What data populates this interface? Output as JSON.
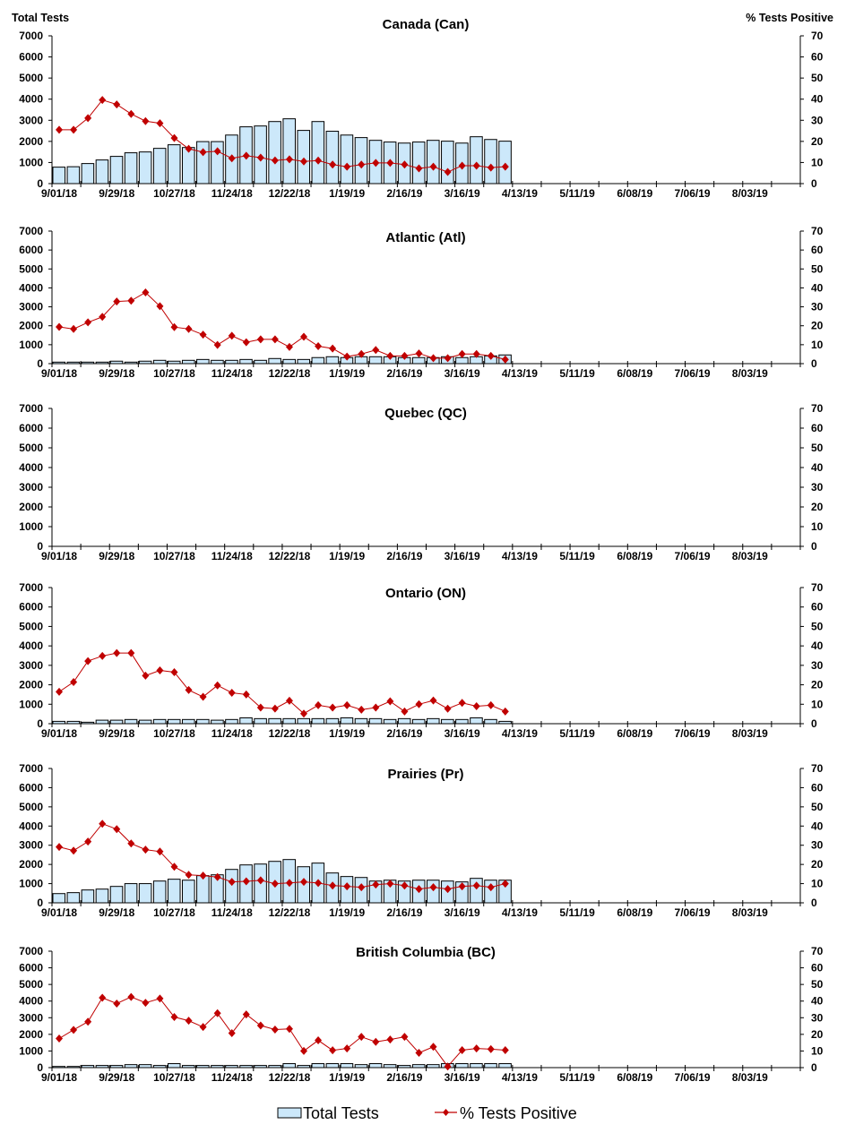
{
  "y_axis_left_label": "Total Tests",
  "y_axis_right_label": "% Tests Positive",
  "legend": {
    "bars": "Total Tests",
    "line": "% Tests Positive"
  },
  "colors": {
    "bar_fill": "#CCE8FA",
    "bar_stroke": "#000000",
    "line": "#C00000"
  },
  "chart_data": [
    {
      "type": "bar+line",
      "title": "Canada (Can)",
      "x_tick_labels": [
        "9/01/18",
        "9/29/18",
        "10/27/18",
        "11/24/18",
        "12/22/18",
        "1/19/19",
        "2/16/19",
        "3/16/19",
        "4/13/19",
        "5/11/19",
        "6/08/19",
        "7/06/19",
        "8/03/19"
      ],
      "weeks_on_axis": 52,
      "ylim": [
        0,
        7000
      ],
      "y2lim": [
        0,
        70
      ],
      "y_ticks": [
        0,
        1000,
        2000,
        3000,
        4000,
        5000,
        6000,
        7000
      ],
      "y2_ticks": [
        0,
        10,
        20,
        30,
        40,
        50,
        60,
        70
      ],
      "series": [
        {
          "name": "Total Tests",
          "axis": "left",
          "values": [
            780,
            800,
            950,
            1120,
            1290,
            1460,
            1500,
            1670,
            1840,
            1710,
            1990,
            1990,
            2300,
            2690,
            2730,
            2940,
            3070,
            2520,
            2940,
            2480,
            2300,
            2180,
            2050,
            1970,
            1920,
            1970,
            2050,
            2010,
            1920,
            2220,
            2090,
            2010
          ]
        },
        {
          "name": "% Tests Positive",
          "axis": "right",
          "values": [
            25.5,
            25.5,
            31,
            39.6,
            37.5,
            33,
            29.6,
            28.6,
            21.6,
            16.5,
            14.9,
            15.3,
            12,
            13.2,
            12.3,
            11,
            11.5,
            10.5,
            10.9,
            9,
            8,
            9,
            9.8,
            9.8,
            9,
            7.2,
            8,
            5.5,
            8.5,
            8.5,
            7.6,
            8
          ]
        }
      ]
    },
    {
      "type": "bar+line",
      "title": "Atlantic (Atl)",
      "ylim": [
        0,
        7000
      ],
      "y2lim": [
        0,
        70
      ],
      "series": [
        {
          "name": "Total Tests",
          "axis": "left",
          "values": [
            80,
            80,
            80,
            80,
            130,
            80,
            130,
            175,
            130,
            175,
            220,
            175,
            175,
            220,
            175,
            270,
            220,
            220,
            320,
            365,
            320,
            365,
            365,
            365,
            320,
            320,
            320,
            365,
            320,
            365,
            410,
            460
          ]
        },
        {
          "name": "% Tests Positive",
          "axis": "right",
          "values": [
            19.4,
            18.3,
            21.8,
            24.7,
            32.8,
            33.2,
            37.6,
            30.3,
            19.3,
            18.3,
            15.3,
            9.9,
            14.7,
            11.3,
            12.8,
            12.8,
            8.8,
            14.2,
            9.2,
            8,
            3.7,
            5.1,
            7.2,
            4.1,
            4.1,
            5.4,
            2.9,
            2.9,
            5.1,
            5.1,
            4.1,
            2.2
          ]
        }
      ]
    },
    {
      "type": "bar+line",
      "title": "Quebec (QC)",
      "ylim": [
        0,
        7000
      ],
      "y2lim": [
        0,
        70
      ],
      "series": [
        {
          "name": "Total Tests",
          "axis": "left",
          "values": []
        },
        {
          "name": "% Tests Positive",
          "axis": "right",
          "values": []
        }
      ]
    },
    {
      "type": "bar+line",
      "title": "Ontario (ON)",
      "ylim": [
        0,
        7000
      ],
      "y2lim": [
        0,
        70
      ],
      "series": [
        {
          "name": "Total Tests",
          "axis": "left",
          "values": [
            120,
            120,
            75,
            180,
            180,
            215,
            180,
            215,
            215,
            215,
            215,
            180,
            215,
            300,
            260,
            260,
            260,
            260,
            260,
            260,
            300,
            260,
            260,
            215,
            260,
            215,
            260,
            215,
            215,
            300,
            215,
            120
          ]
        },
        {
          "name": "% Tests Positive",
          "axis": "right",
          "values": [
            16.4,
            21.4,
            32.2,
            34.8,
            36.3,
            36.3,
            24.7,
            27.4,
            26.5,
            17.3,
            13.8,
            19.7,
            15.9,
            15,
            8.3,
            7.8,
            11.8,
            5.2,
            9.5,
            8.3,
            9.5,
            7.2,
            8.3,
            11.5,
            6.3,
            10,
            11.9,
            7.7,
            10.7,
            9,
            9.5,
            6.3
          ]
        }
      ]
    },
    {
      "type": "bar+line",
      "title": "Prairies (Pr)",
      "ylim": [
        0,
        7000
      ],
      "y2lim": [
        0,
        70
      ],
      "series": [
        {
          "name": "Total Tests",
          "axis": "left",
          "values": [
            480,
            530,
            670,
            715,
            855,
            1000,
            1000,
            1135,
            1230,
            1180,
            1415,
            1460,
            1740,
            1975,
            2020,
            2160,
            2255,
            1880,
            2070,
            1555,
            1370,
            1320,
            1135,
            1180,
            1135,
            1180,
            1180,
            1135,
            1090,
            1275,
            1180,
            1180
          ]
        },
        {
          "name": "% Tests Positive",
          "axis": "right",
          "values": [
            29.1,
            27.2,
            31.9,
            41.2,
            38.4,
            30.9,
            27.7,
            26.7,
            18.8,
            14.6,
            14.2,
            13.4,
            10.9,
            11.2,
            11.7,
            10,
            10.4,
            10.9,
            10.3,
            9,
            8.6,
            8.1,
            9.5,
            10,
            9,
            7.2,
            8.1,
            7.2,
            8.6,
            9,
            8.1,
            10
          ]
        }
      ]
    },
    {
      "type": "bar+line",
      "title": "British Columbia (BC)",
      "ylim": [
        0,
        7000
      ],
      "y2lim": [
        0,
        70
      ],
      "series": [
        {
          "name": "Total Tests",
          "axis": "left",
          "values": [
            70,
            70,
            130,
            130,
            130,
            180,
            180,
            130,
            240,
            130,
            130,
            130,
            130,
            130,
            130,
            130,
            240,
            130,
            240,
            240,
            240,
            180,
            240,
            180,
            130,
            180,
            180,
            240,
            240,
            240,
            240,
            240
          ]
        },
        {
          "name": "% Tests Positive",
          "axis": "right",
          "values": [
            17.5,
            22.7,
            27.6,
            42,
            38.5,
            42.5,
            39,
            41.5,
            30.4,
            28.2,
            24.4,
            32.7,
            20.7,
            32,
            25.3,
            22.9,
            23.3,
            10,
            16.4,
            10.4,
            11.5,
            18.5,
            15.5,
            16.9,
            18.5,
            8.9,
            12.5,
            0.7,
            10.5,
            11.5,
            11.1,
            10.5
          ]
        }
      ]
    }
  ]
}
